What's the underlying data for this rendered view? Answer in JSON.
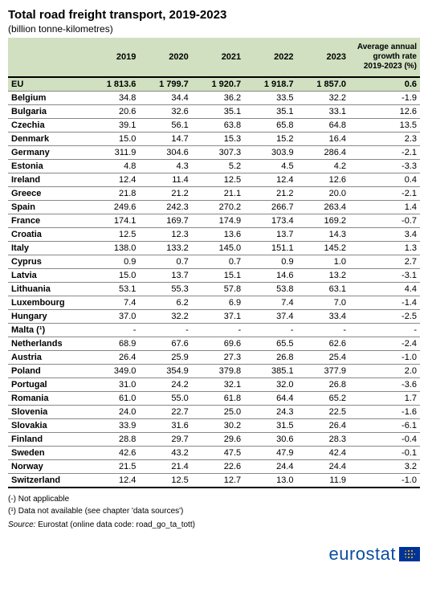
{
  "title": "Total road freight transport, 2019-2023",
  "subtitle": "(billion tonne-kilometres)",
  "columns": [
    "2019",
    "2020",
    "2021",
    "2022",
    "2023"
  ],
  "growth_header": "Average annual growth rate 2019-2023 (%)",
  "eu_row": {
    "name": "EU",
    "values": [
      "1 813.6",
      "1 799.7",
      "1 920.7",
      "1 918.7",
      "1 857.0"
    ],
    "growth": "0.6"
  },
  "rows": [
    {
      "name": "Belgium",
      "values": [
        "34.8",
        "34.4",
        "36.2",
        "33.5",
        "32.2"
      ],
      "growth": "-1.9"
    },
    {
      "name": "Bulgaria",
      "values": [
        "20.6",
        "32.6",
        "35.1",
        "35.1",
        "33.1"
      ],
      "growth": "12.6"
    },
    {
      "name": "Czechia",
      "values": [
        "39.1",
        "56.1",
        "63.8",
        "65.8",
        "64.8"
      ],
      "growth": "13.5"
    },
    {
      "name": "Denmark",
      "values": [
        "15.0",
        "14.7",
        "15.3",
        "15.2",
        "16.4"
      ],
      "growth": "2.3"
    },
    {
      "name": "Germany",
      "values": [
        "311.9",
        "304.6",
        "307.3",
        "303.9",
        "286.4"
      ],
      "growth": "-2.1"
    },
    {
      "name": "Estonia",
      "values": [
        "4.8",
        "4.3",
        "5.2",
        "4.5",
        "4.2"
      ],
      "growth": "-3.3"
    },
    {
      "name": "Ireland",
      "values": [
        "12.4",
        "11.4",
        "12.5",
        "12.4",
        "12.6"
      ],
      "growth": "0.4"
    },
    {
      "name": "Greece",
      "values": [
        "21.8",
        "21.2",
        "21.1",
        "21.2",
        "20.0"
      ],
      "growth": "-2.1"
    },
    {
      "name": "Spain",
      "values": [
        "249.6",
        "242.3",
        "270.2",
        "266.7",
        "263.4"
      ],
      "growth": "1.4"
    },
    {
      "name": "France",
      "values": [
        "174.1",
        "169.7",
        "174.9",
        "173.4",
        "169.2"
      ],
      "growth": "-0.7"
    },
    {
      "name": "Croatia",
      "values": [
        "12.5",
        "12.3",
        "13.6",
        "13.7",
        "14.3"
      ],
      "growth": "3.4"
    },
    {
      "name": "Italy",
      "values": [
        "138.0",
        "133.2",
        "145.0",
        "151.1",
        "145.2"
      ],
      "growth": "1.3"
    },
    {
      "name": "Cyprus",
      "values": [
        "0.9",
        "0.7",
        "0.7",
        "0.9",
        "1.0"
      ],
      "growth": "2.7"
    },
    {
      "name": "Latvia",
      "values": [
        "15.0",
        "13.7",
        "15.1",
        "14.6",
        "13.2"
      ],
      "growth": "-3.1"
    },
    {
      "name": "Lithuania",
      "values": [
        "53.1",
        "55.3",
        "57.8",
        "53.8",
        "63.1"
      ],
      "growth": "4.4"
    },
    {
      "name": "Luxembourg",
      "values": [
        "7.4",
        "6.2",
        "6.9",
        "7.4",
        "7.0"
      ],
      "growth": "-1.4"
    },
    {
      "name": "Hungary",
      "values": [
        "37.0",
        "32.2",
        "37.1",
        "37.4",
        "33.4"
      ],
      "growth": "-2.5"
    },
    {
      "name": "Malta (¹)",
      "values": [
        "-",
        "-",
        "-",
        "-",
        "-"
      ],
      "growth": "-"
    },
    {
      "name": "Netherlands",
      "values": [
        "68.9",
        "67.6",
        "69.6",
        "65.5",
        "62.6"
      ],
      "growth": "-2.4"
    },
    {
      "name": "Austria",
      "values": [
        "26.4",
        "25.9",
        "27.3",
        "26.8",
        "25.4"
      ],
      "growth": "-1.0"
    },
    {
      "name": "Poland",
      "values": [
        "349.0",
        "354.9",
        "379.8",
        "385.1",
        "377.9"
      ],
      "growth": "2.0"
    },
    {
      "name": "Portugal",
      "values": [
        "31.0",
        "24.2",
        "32.1",
        "32.0",
        "26.8"
      ],
      "growth": "-3.6"
    },
    {
      "name": "Romania",
      "values": [
        "61.0",
        "55.0",
        "61.8",
        "64.4",
        "65.2"
      ],
      "growth": "1.7"
    },
    {
      "name": "Slovenia",
      "values": [
        "24.0",
        "22.7",
        "25.0",
        "24.3",
        "22.5"
      ],
      "growth": "-1.6"
    },
    {
      "name": "Slovakia",
      "values": [
        "33.9",
        "31.6",
        "30.2",
        "31.5",
        "26.4"
      ],
      "growth": "-6.1"
    },
    {
      "name": "Finland",
      "values": [
        "28.8",
        "29.7",
        "29.6",
        "30.6",
        "28.3"
      ],
      "growth": "-0.4"
    },
    {
      "name": "Sweden",
      "values": [
        "42.6",
        "43.2",
        "47.5",
        "47.9",
        "42.4"
      ],
      "growth": "-0.1"
    },
    {
      "name": "Norway",
      "values": [
        "21.5",
        "21.4",
        "22.6",
        "24.4",
        "24.4"
      ],
      "growth": "3.2"
    },
    {
      "name": "Switzerland",
      "values": [
        "12.4",
        "12.5",
        "12.7",
        "13.0",
        "11.9"
      ],
      "growth": "-1.0"
    }
  ],
  "footnote1": "(-) Not applicable",
  "footnote2": "(¹) Data not available (see chapter 'data sources')",
  "source_label": "Source:",
  "source_text": " Eurostat (online data code: road_go_ta_tott)",
  "logo_text": "eurostat",
  "colors": {
    "header_bg": "#d0e0c0",
    "border_dark": "#000000",
    "border_light": "#888888",
    "logo_blue": "#0b4ea2",
    "flag_bg": "#003399"
  }
}
